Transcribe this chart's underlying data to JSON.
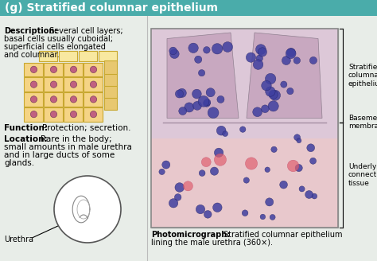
{
  "title": "(g) Stratified columnar epithelium",
  "title_bg": "#4aacaa",
  "title_color": "white",
  "title_fontsize": 10,
  "bg_color": "#e8ede8",
  "description_bold": "Description:",
  "description_text": " Several cell layers;\nbasal cells usually cuboidal;\nsuperficial cells elongated\nand columnar.",
  "function_bold": "Function:",
  "function_text": " Protection; secretion.",
  "location_bold": "Location:",
  "location_text": " Rare in the body;\nsmall amounts in male urethra\nand in large ducts of some\nglands.",
  "urethra_label": "Urethra",
  "photo_bold": "Photomicrograph:",
  "photo_text": " Stratified columnar epithelium\nlining the male urethra (360×).",
  "label1": "Stratified\ncolumnar\nepithelium",
  "label2": "Basement\nmembrane",
  "label3": "Underlying\nconnective\ntissue",
  "nucleus_epi_color": "#4040a0",
  "nucleus_epi_edge": "#202060",
  "nucleus_ct_color": "#4040a0",
  "fold_color": "#c8a8c0",
  "ct_bg_color": "#e8c8cc",
  "ep_bg_color": "#ddc8d8",
  "cell_color": "#f5d485",
  "cell_border": "#c8a830",
  "nucleus_color": "#c06080"
}
